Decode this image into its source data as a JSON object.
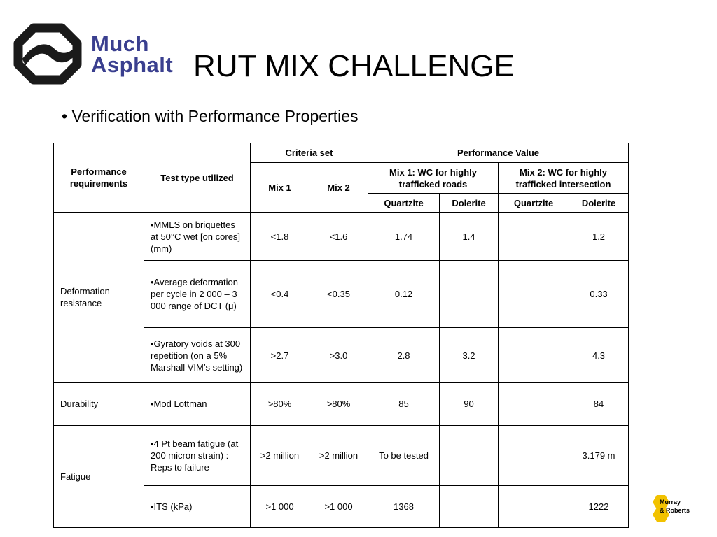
{
  "logo": {
    "line1": "Much",
    "line2": "Asphalt",
    "brand_color": "#3a3f8f"
  },
  "slide": {
    "title": "RUT MIX CHALLENGE",
    "bullet": "• Verification with Performance Properties"
  },
  "table": {
    "header": {
      "performance_requirements": "Performance requirements",
      "test_type": "Test type utilized",
      "criteria_set": "Criteria set",
      "performance_value": "Performance Value",
      "mix1": "Mix 1",
      "mix2": "Mix 2",
      "mix1_desc": "Mix 1: WC for highly trafficked roads",
      "mix2_desc": "Mix 2: WC for highly trafficked intersection",
      "quartzite_1": "Quartzite",
      "dolerite_1": "Dolerite",
      "quartzite_2": "Quartzite",
      "dolerite_2": "Dolerite"
    },
    "groups": {
      "deformation": "Deformation resistance",
      "durability": "Durability",
      "fatigue": "Fatigue"
    },
    "rows": [
      {
        "test": "•MMLS on briquettes at 50°C wet [on cores] (mm)",
        "crit1": "<1.8",
        "crit2": "<1.6",
        "m1q": "1.74",
        "m1d": "1.4",
        "m2q": "",
        "m2d": "1.2"
      },
      {
        "test": "•Average deformation per cycle in 2 000 – 3 000 range of DCT (μ)",
        "crit1": "<0.4",
        "crit2": "<0.35",
        "m1q": "0.12",
        "m1d": "",
        "m2q": "",
        "m2d": "0.33"
      },
      {
        "test": "•Gyratory voids at 300 repetition (on a 5% Marshall VIM’s setting)",
        "crit1": ">2.7",
        "crit2": ">3.0",
        "m1q": "2.8",
        "m1d": "3.2",
        "m2q": "",
        "m2d": "4.3"
      },
      {
        "test": "•Mod Lottman",
        "crit1": ">80%",
        "crit2": ">80%",
        "m1q": "85",
        "m1d": "90",
        "m2q": "",
        "m2d": "84"
      },
      {
        "test": "•4 Pt beam fatigue (at 200 micron strain) : Reps to failure",
        "crit1": ">2 million",
        "crit2": ">2 million",
        "m1q": "To be tested",
        "m1d": "",
        "m2q": "",
        "m2d": "3.179 m"
      },
      {
        "test": "•ITS (kPa)",
        "crit1": ">1 000",
        "crit2": ">1 000",
        "m1q": "1368",
        "m1d": "",
        "m2q": "",
        "m2d": "1222"
      }
    ]
  },
  "corner_logo": {
    "line1": "Murray",
    "line2": "& Roberts",
    "color": "#f2c200"
  }
}
